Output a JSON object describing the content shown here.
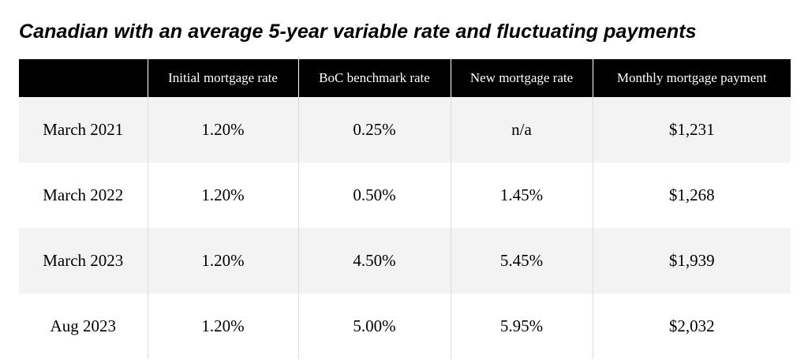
{
  "title": "Canadian with an average 5-year variable rate and fluctuating payments",
  "table": {
    "headers": [
      "",
      "Initial mortgage rate",
      "BoC benchmark rate",
      "New mortgage rate",
      "Monthly mortgage payment"
    ],
    "rows": [
      [
        "March 2021",
        "1.20%",
        "0.25%",
        "n/a",
        "$1,231"
      ],
      [
        "March 2022",
        "1.20%",
        "0.50%",
        "1.45%",
        "$1,268"
      ],
      [
        "March 2023",
        "1.20%",
        "4.50%",
        "5.45%",
        "$1,939"
      ],
      [
        "Aug 2023",
        "1.20%",
        "5.00%",
        "5.95%",
        "$2,032"
      ]
    ]
  }
}
